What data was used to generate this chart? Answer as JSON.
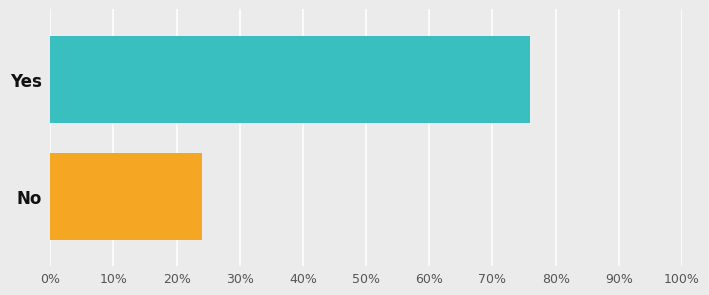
{
  "categories": [
    "No",
    "Yes"
  ],
  "values": [
    24,
    76
  ],
  "bar_colors": [
    "#F5A623",
    "#3ABFC0"
  ],
  "background_color": "#EBEBEB",
  "plot_bg_color": "#EBEBEB",
  "xlim": [
    0,
    100
  ],
  "xtick_labels": [
    "0%",
    "10%",
    "20%",
    "30%",
    "40%",
    "50%",
    "60%",
    "70%",
    "80%",
    "90%",
    "100%"
  ],
  "xtick_values": [
    0,
    10,
    20,
    30,
    40,
    50,
    60,
    70,
    80,
    90,
    100
  ],
  "ylabel_fontsize": 12,
  "bar_height": 0.75,
  "grid_color": "#FFFFFF",
  "tick_color": "#555555",
  "grid_linewidth": 1.2
}
